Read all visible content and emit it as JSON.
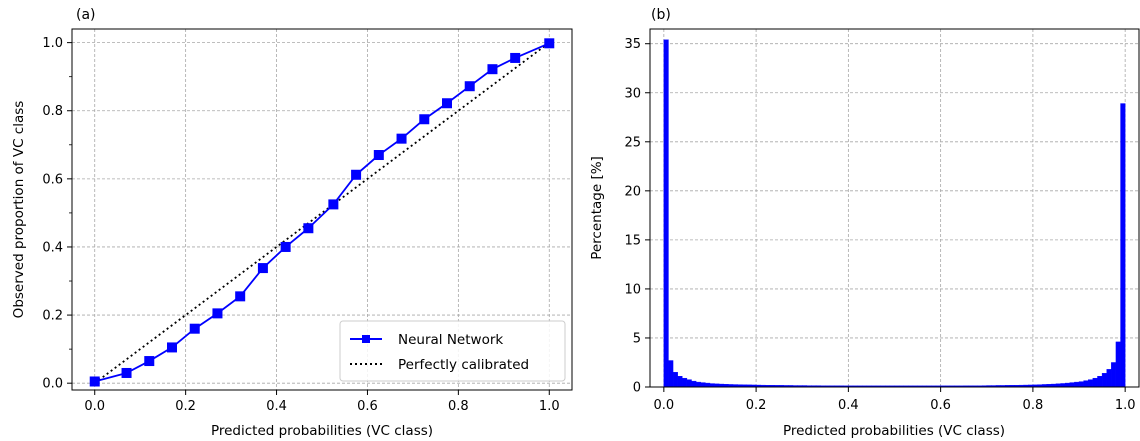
{
  "chart_data": [
    {
      "type": "line",
      "panel_label": "(a)",
      "xlabel": "Predicted probabilities (VC class)",
      "ylabel": "Observed proportion of VC class",
      "xlim": [
        -0.05,
        1.05
      ],
      "ylim": [
        -0.02,
        1.04
      ],
      "xticks": [
        "0.0",
        "0.2",
        "0.4",
        "0.6",
        "0.8",
        "1.0"
      ],
      "yticks": [
        "0.0",
        "0.2",
        "0.4",
        "0.6",
        "0.8",
        "1.0"
      ],
      "grid": true,
      "legend_position": "bottom-right",
      "series": [
        {
          "name": "Neural Network",
          "color": "#0000ff",
          "marker": "square",
          "x": [
            0.0,
            0.07,
            0.12,
            0.17,
            0.22,
            0.27,
            0.32,
            0.37,
            0.42,
            0.47,
            0.525,
            0.575,
            0.625,
            0.675,
            0.725,
            0.775,
            0.825,
            0.875,
            0.925,
            1.0
          ],
          "y": [
            0.005,
            0.03,
            0.065,
            0.105,
            0.16,
            0.205,
            0.255,
            0.338,
            0.4,
            0.455,
            0.525,
            0.612,
            0.67,
            0.718,
            0.775,
            0.822,
            0.872,
            0.922,
            0.955,
            0.998
          ]
        },
        {
          "name": "Perfectly calibrated",
          "color": "#000000",
          "style": "dotted",
          "x": [
            0.0,
            1.0
          ],
          "y": [
            0.0,
            1.0
          ]
        }
      ]
    },
    {
      "type": "bar",
      "panel_label": "(b)",
      "xlabel": "Predicted probabilities (VC class)",
      "ylabel": "Percentage [%]",
      "xlim": [
        -0.03,
        1.03
      ],
      "ylim": [
        0,
        36.5
      ],
      "xticks": [
        "0.0",
        "0.2",
        "0.4",
        "0.6",
        "0.8",
        "1.0"
      ],
      "yticks": [
        "0",
        "5",
        "10",
        "15",
        "20",
        "25",
        "30",
        "35"
      ],
      "grid": true,
      "color": "#0000ff",
      "bin_width": 0.01,
      "bin_starts": [
        0.0,
        0.01,
        0.02,
        0.03,
        0.04,
        0.05,
        0.06,
        0.07,
        0.08,
        0.09,
        0.1,
        0.11,
        0.12,
        0.13,
        0.14,
        0.15,
        0.16,
        0.17,
        0.18,
        0.19,
        0.2,
        0.21,
        0.22,
        0.23,
        0.24,
        0.25,
        0.26,
        0.27,
        0.28,
        0.29,
        0.3,
        0.31,
        0.32,
        0.33,
        0.34,
        0.35,
        0.36,
        0.37,
        0.38,
        0.39,
        0.4,
        0.41,
        0.42,
        0.43,
        0.44,
        0.45,
        0.46,
        0.47,
        0.48,
        0.49,
        0.5,
        0.51,
        0.52,
        0.53,
        0.54,
        0.55,
        0.56,
        0.57,
        0.58,
        0.59,
        0.6,
        0.61,
        0.62,
        0.63,
        0.64,
        0.65,
        0.66,
        0.67,
        0.68,
        0.69,
        0.7,
        0.71,
        0.72,
        0.73,
        0.74,
        0.75,
        0.76,
        0.77,
        0.78,
        0.79,
        0.8,
        0.81,
        0.82,
        0.83,
        0.84,
        0.85,
        0.86,
        0.87,
        0.88,
        0.89,
        0.9,
        0.91,
        0.92,
        0.93,
        0.94,
        0.95,
        0.96,
        0.97,
        0.98,
        0.99
      ],
      "values": [
        35.4,
        2.7,
        1.5,
        1.1,
        0.9,
        0.75,
        0.6,
        0.5,
        0.45,
        0.4,
        0.35,
        0.32,
        0.3,
        0.28,
        0.26,
        0.25,
        0.24,
        0.23,
        0.22,
        0.21,
        0.2,
        0.19,
        0.18,
        0.18,
        0.17,
        0.17,
        0.16,
        0.16,
        0.15,
        0.15,
        0.15,
        0.14,
        0.14,
        0.14,
        0.13,
        0.13,
        0.13,
        0.13,
        0.13,
        0.12,
        0.12,
        0.12,
        0.12,
        0.12,
        0.12,
        0.12,
        0.12,
        0.12,
        0.12,
        0.12,
        0.12,
        0.12,
        0.12,
        0.12,
        0.12,
        0.12,
        0.12,
        0.12,
        0.12,
        0.12,
        0.12,
        0.12,
        0.12,
        0.12,
        0.12,
        0.13,
        0.13,
        0.13,
        0.13,
        0.14,
        0.15,
        0.15,
        0.16,
        0.16,
        0.17,
        0.18,
        0.18,
        0.19,
        0.2,
        0.21,
        0.22,
        0.24,
        0.26,
        0.28,
        0.3,
        0.33,
        0.36,
        0.4,
        0.45,
        0.5,
        0.55,
        0.65,
        0.75,
        0.9,
        1.1,
        1.4,
        1.8,
        2.5,
        4.6,
        28.9
      ]
    }
  ]
}
